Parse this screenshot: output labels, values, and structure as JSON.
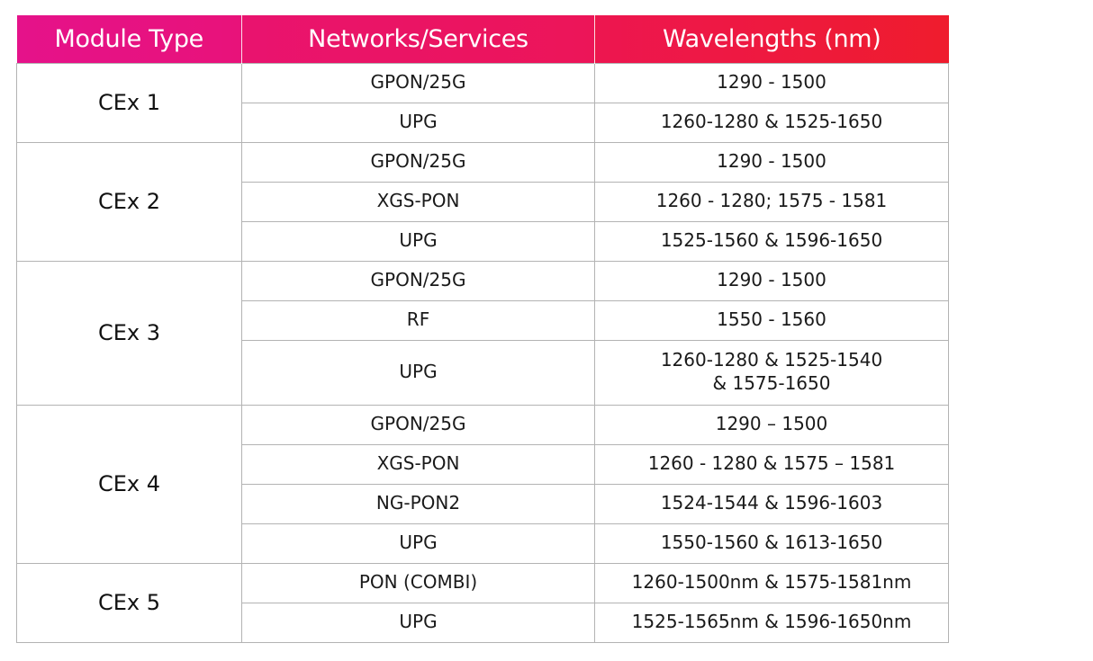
{
  "headers": {
    "module_type": "Module Type",
    "networks_services": "Networks/Services",
    "wavelengths": "Wavelengths (nm)"
  },
  "colors": {
    "header_gradient_start": "#e5128a",
    "header_gradient_end": "#ef1c2d",
    "header_text": "#ffffff",
    "grid_line": "#b3b3b3"
  },
  "modules": [
    {
      "name": "CEx 1",
      "rows": [
        {
          "service": "GPON/25G",
          "wavelength": "1290 - 1500"
        },
        {
          "service": "UPG",
          "wavelength": "1260-1280 & 1525-1650"
        }
      ]
    },
    {
      "name": "CEx 2",
      "rows": [
        {
          "service": "GPON/25G",
          "wavelength": "1290 - 1500"
        },
        {
          "service": "XGS-PON",
          "wavelength": "1260 - 1280; 1575 - 1581"
        },
        {
          "service": "UPG",
          "wavelength": "1525-1560 & 1596-1650"
        }
      ]
    },
    {
      "name": "CEx 3",
      "rows": [
        {
          "service": "GPON/25G",
          "wavelength": "1290 - 1500"
        },
        {
          "service": "RF",
          "wavelength": "1550 - 1560"
        },
        {
          "service": "UPG",
          "wavelength": "1260-1280 & 1525-1540",
          "wavelength_line2": "& 1575-1650"
        }
      ]
    },
    {
      "name": "CEx 4",
      "rows": [
        {
          "service": "GPON/25G",
          "wavelength": "1290 – 1500"
        },
        {
          "service": "XGS-PON",
          "wavelength": "1260 - 1280 & 1575 – 1581"
        },
        {
          "service": "NG-PON2",
          "wavelength": "1524-1544 & 1596-1603"
        },
        {
          "service": "UPG",
          "wavelength": "1550-1560 & 1613-1650"
        }
      ]
    },
    {
      "name": "CEx 5",
      "rows": [
        {
          "service": "PON (COMBI)",
          "wavelength": "1260-1500nm & 1575-1581nm"
        },
        {
          "service": "UPG",
          "wavelength": "1525-1565nm & 1596-1650nm"
        }
      ]
    }
  ]
}
